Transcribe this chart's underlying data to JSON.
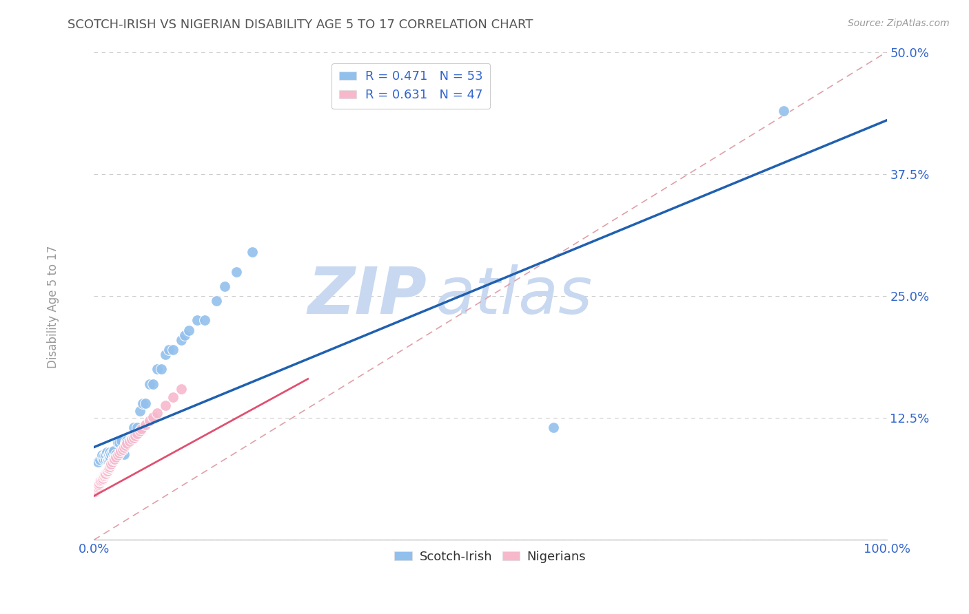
{
  "title": "SCOTCH-IRISH VS NIGERIAN DISABILITY AGE 5 TO 17 CORRELATION CHART",
  "source": "Source: ZipAtlas.com",
  "ylabel": "Disability Age 5 to 17",
  "x_ticks": [
    0.0,
    0.125,
    0.25,
    0.375,
    0.5,
    0.625,
    0.75,
    0.875,
    1.0
  ],
  "x_tick_labels": [
    "0.0%",
    "",
    "",
    "",
    "",
    "",
    "",
    "",
    "100.0%"
  ],
  "y_ticks": [
    0.0,
    0.125,
    0.25,
    0.375,
    0.5
  ],
  "y_tick_labels": [
    "",
    "12.5%",
    "25.0%",
    "37.5%",
    "50.0%"
  ],
  "xlim": [
    0.0,
    1.0
  ],
  "ylim": [
    0.0,
    0.5
  ],
  "scotch_irish_R": 0.471,
  "scotch_irish_N": 53,
  "nigerian_R": 0.631,
  "nigerian_N": 47,
  "scotch_irish_color": "#92C0ED",
  "nigerian_color": "#F7B8CC",
  "scotch_irish_line_color": "#2060B0",
  "nigerian_line_color": "#E05070",
  "diagonal_color": "#E0A0A8",
  "watermark_color": "#C8D8F0",
  "scotch_irish_x": [
    0.005,
    0.008,
    0.01,
    0.01,
    0.012,
    0.013,
    0.015,
    0.015,
    0.016,
    0.017,
    0.018,
    0.018,
    0.019,
    0.02,
    0.02,
    0.021,
    0.022,
    0.023,
    0.025,
    0.025,
    0.028,
    0.03,
    0.032,
    0.035,
    0.038,
    0.04,
    0.042,
    0.042,
    0.045,
    0.048,
    0.05,
    0.055,
    0.058,
    0.062,
    0.065,
    0.07,
    0.075,
    0.08,
    0.085,
    0.09,
    0.095,
    0.1,
    0.11,
    0.115,
    0.12,
    0.13,
    0.14,
    0.155,
    0.165,
    0.18,
    0.2,
    0.58,
    0.87
  ],
  "scotch_irish_y": [
    0.08,
    0.082,
    0.085,
    0.087,
    0.083,
    0.086,
    0.083,
    0.088,
    0.09,
    0.082,
    0.083,
    0.086,
    0.088,
    0.083,
    0.09,
    0.085,
    0.088,
    0.09,
    0.085,
    0.091,
    0.088,
    0.1,
    0.1,
    0.102,
    0.088,
    0.1,
    0.099,
    0.102,
    0.102,
    0.103,
    0.115,
    0.115,
    0.132,
    0.14,
    0.14,
    0.16,
    0.16,
    0.175,
    0.175,
    0.19,
    0.195,
    0.195,
    0.205,
    0.21,
    0.215,
    0.225,
    0.225,
    0.245,
    0.26,
    0.275,
    0.295,
    0.115,
    0.44
  ],
  "nigerian_x": [
    0.002,
    0.003,
    0.004,
    0.005,
    0.006,
    0.006,
    0.007,
    0.008,
    0.009,
    0.01,
    0.011,
    0.012,
    0.013,
    0.014,
    0.015,
    0.016,
    0.017,
    0.018,
    0.019,
    0.02,
    0.021,
    0.022,
    0.023,
    0.025,
    0.026,
    0.028,
    0.03,
    0.032,
    0.034,
    0.036,
    0.038,
    0.04,
    0.042,
    0.045,
    0.048,
    0.05,
    0.052,
    0.055,
    0.058,
    0.06,
    0.065,
    0.07,
    0.075,
    0.08,
    0.09,
    0.1,
    0.11
  ],
  "nigerian_y": [
    0.05,
    0.052,
    0.053,
    0.054,
    0.055,
    0.057,
    0.058,
    0.06,
    0.061,
    0.062,
    0.063,
    0.065,
    0.066,
    0.067,
    0.068,
    0.07,
    0.071,
    0.073,
    0.074,
    0.075,
    0.077,
    0.078,
    0.08,
    0.082,
    0.083,
    0.085,
    0.087,
    0.089,
    0.091,
    0.093,
    0.095,
    0.097,
    0.099,
    0.101,
    0.103,
    0.105,
    0.107,
    0.109,
    0.112,
    0.114,
    0.118,
    0.122,
    0.126,
    0.13,
    0.138,
    0.146,
    0.155
  ],
  "background_color": "#FFFFFF",
  "grid_color": "#CCCCCC",
  "tick_label_color": "#3366CC",
  "title_color": "#555555",
  "legend_label_color": "#3366CC",
  "axis_label_color": "#999999",
  "legend_scotch_label": "R = 0.471   N = 53",
  "legend_nigerian_label": "R = 0.631   N = 47",
  "bottom_legend_scotch": "Scotch-Irish",
  "bottom_legend_nigerian": "Nigerians"
}
